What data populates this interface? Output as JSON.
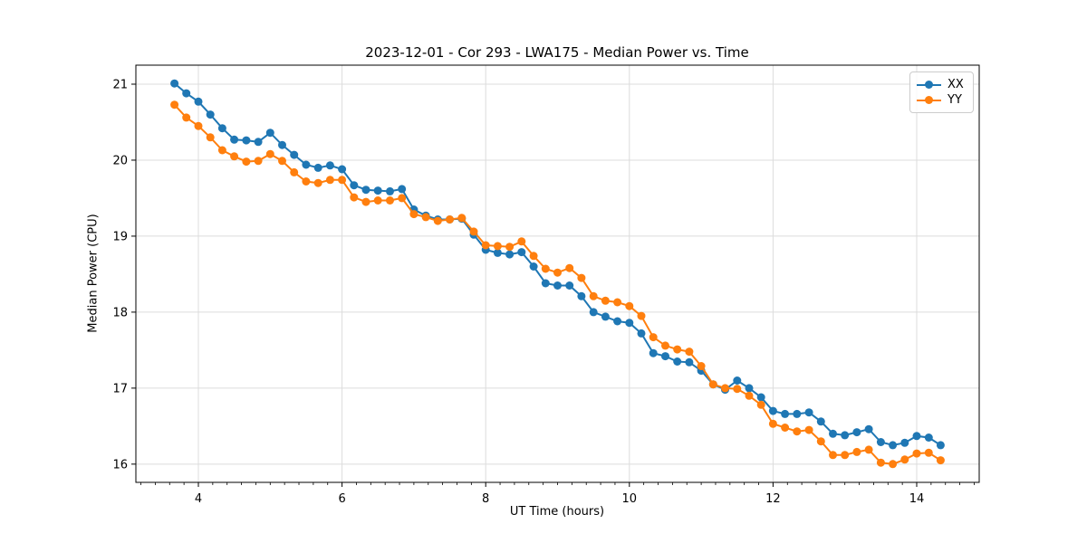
{
  "chart_data": {
    "type": "line",
    "title": "2023-12-01 - Cor 293 - LWA175 - Median Power vs. Time",
    "xlabel": "UT Time (hours)",
    "ylabel": "Median Power (CPU)",
    "x": [
      3.667,
      3.833,
      4.0,
      4.167,
      4.333,
      4.5,
      4.667,
      4.833,
      5.0,
      5.167,
      5.333,
      5.5,
      5.667,
      5.833,
      6.0,
      6.167,
      6.333,
      6.5,
      6.667,
      6.833,
      7.0,
      7.167,
      7.333,
      7.5,
      7.667,
      7.833,
      8.0,
      8.167,
      8.333,
      8.5,
      8.667,
      8.833,
      9.0,
      9.167,
      9.333,
      9.5,
      9.667,
      9.833,
      10.0,
      10.167,
      10.333,
      10.5,
      10.667,
      10.833,
      11.0,
      11.167,
      11.333,
      11.5,
      11.667,
      11.833,
      12.0,
      12.167,
      12.333,
      12.5,
      12.667,
      12.833,
      13.0,
      13.167,
      13.333,
      13.5,
      13.667,
      13.833,
      14.0,
      14.167,
      14.333
    ],
    "series": [
      {
        "name": "XX",
        "color": "#1f77b4",
        "values": [
          21.01,
          20.88,
          20.77,
          20.6,
          20.42,
          20.27,
          20.26,
          20.24,
          20.36,
          20.2,
          20.07,
          19.94,
          19.9,
          19.93,
          19.88,
          19.67,
          19.61,
          19.6,
          19.59,
          19.62,
          19.35,
          19.27,
          19.22,
          19.22,
          19.23,
          19.02,
          18.82,
          18.78,
          18.76,
          18.79,
          18.6,
          18.38,
          18.35,
          18.35,
          18.21,
          18.0,
          17.94,
          17.88,
          17.86,
          17.72,
          17.46,
          17.42,
          17.35,
          17.34,
          17.23,
          17.05,
          16.98,
          17.1,
          17.0,
          16.88,
          16.7,
          16.66,
          16.66,
          16.68,
          16.56,
          16.4,
          16.38,
          16.42,
          16.46,
          16.29,
          16.25,
          16.28,
          16.37,
          16.35,
          16.25
        ]
      },
      {
        "name": "YY",
        "color": "#ff7f0e",
        "values": [
          20.73,
          20.56,
          20.45,
          20.3,
          20.13,
          20.05,
          19.98,
          19.99,
          20.08,
          19.99,
          19.84,
          19.72,
          19.7,
          19.74,
          19.74,
          19.51,
          19.45,
          19.47,
          19.47,
          19.5,
          19.29,
          19.25,
          19.2,
          19.22,
          19.24,
          19.06,
          18.88,
          18.87,
          18.86,
          18.93,
          18.74,
          18.57,
          18.52,
          18.58,
          18.45,
          18.21,
          18.15,
          18.13,
          18.08,
          17.95,
          17.67,
          17.56,
          17.51,
          17.48,
          17.29,
          17.05,
          17.0,
          16.99,
          16.9,
          16.78,
          16.53,
          16.48,
          16.43,
          16.45,
          16.3,
          16.12,
          16.12,
          16.16,
          16.19,
          16.02,
          16.0,
          16.06,
          16.14,
          16.15,
          16.05
        ]
      }
    ],
    "xlim": [
      3.13,
      14.87
    ],
    "ylim": [
      15.76,
      21.25
    ],
    "xticks": [
      4,
      6,
      8,
      10,
      12,
      14
    ],
    "yticks": [
      16,
      17,
      18,
      19,
      20,
      21
    ],
    "x_minor_tick_step": 0.2,
    "grid": true,
    "grid_color": "#dcdcdc",
    "legend_position": "upper right",
    "marker": "circle"
  }
}
